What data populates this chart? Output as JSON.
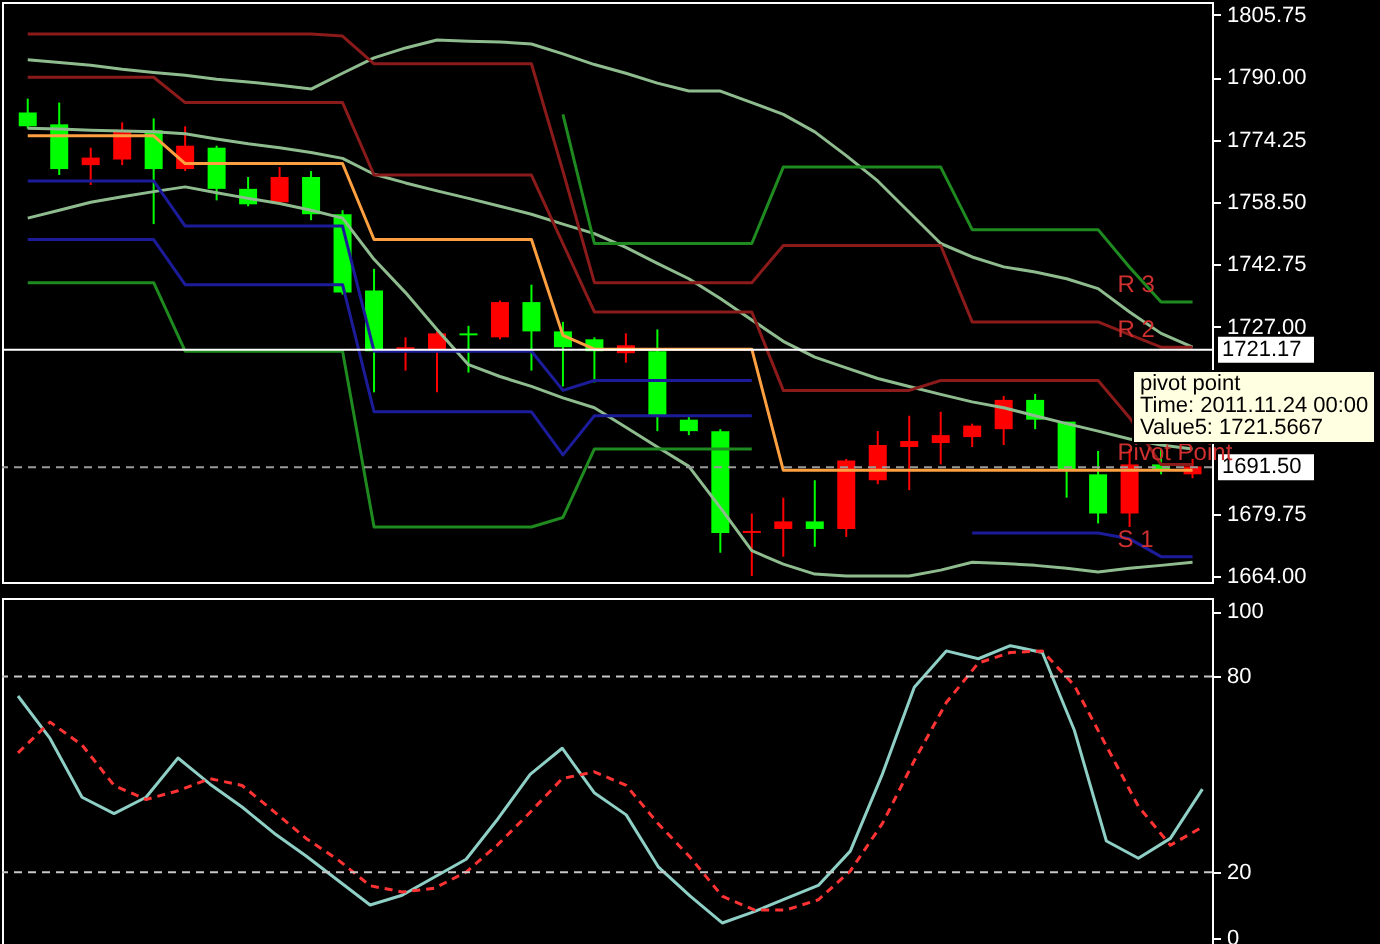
{
  "chart_data": [
    {
      "type": "candlestick",
      "categories": [
        null,
        null,
        null,
        null,
        null,
        null,
        null,
        null,
        null,
        null,
        null,
        null,
        null,
        null,
        null,
        null,
        null,
        null,
        null,
        null,
        null,
        null,
        null,
        null,
        null,
        null,
        null,
        null,
        null,
        null,
        null,
        null,
        null,
        null,
        null,
        null,
        null,
        null
      ],
      "ohlc": [
        [
          1777.6,
          1784.6,
          1777.0,
          1781.1
        ],
        [
          1766.8,
          1783.6,
          1765.3,
          1778.1
        ],
        [
          1769.7,
          1772.2,
          1762.8,
          1767.8
        ],
        [
          1776.2,
          1778.6,
          1767.8,
          1769.2
        ],
        [
          1766.8,
          1779.6,
          1752.9,
          1776.6
        ],
        [
          1772.7,
          1777.6,
          1766.3,
          1766.8
        ],
        [
          1761.8,
          1772.7,
          1758.9,
          1772.2
        ],
        [
          1757.9,
          1764.8,
          1757.4,
          1761.8
        ],
        [
          1764.8,
          1767.3,
          1757.9,
          1758.4
        ],
        [
          1755.4,
          1766.3,
          1753.9,
          1764.8
        ],
        [
          1735.6,
          1756.4,
          1735.1,
          1755.4
        ],
        [
          1720.8,
          1741.6,
          1710.4,
          1736.1
        ],
        [
          1721.8,
          1724.3,
          1715.9,
          1720.8
        ],
        [
          1725.3,
          1725.8,
          1710.4,
          1721.3
        ],
        [
          1724.8,
          1727.2,
          1715.4,
          1725.3
        ],
        [
          1733.2,
          1733.6,
          1723.8,
          1724.3
        ],
        [
          1725.8,
          1737.6,
          1715.9,
          1733.2
        ],
        [
          1721.8,
          1728.2,
          1711.9,
          1725.8
        ],
        [
          1720.8,
          1724.3,
          1712.9,
          1723.8
        ],
        [
          1722.3,
          1725.3,
          1717.9,
          1720.3
        ],
        [
          1704.5,
          1726.3,
          1700.6,
          1720.8
        ],
        [
          1700.6,
          1704.5,
          1699.6,
          1703.5
        ],
        [
          1674.9,
          1701.1,
          1669.9,
          1700.6
        ],
        [
          1675.4,
          1679.8,
          1664.0,
          1674.9
        ],
        [
          1677.8,
          1683.8,
          1668.9,
          1675.9
        ],
        [
          1675.9,
          1688.2,
          1671.4,
          1677.8
        ],
        [
          1693.2,
          1693.6,
          1673.9,
          1675.9
        ],
        [
          1697.1,
          1700.6,
          1687.2,
          1688.2
        ],
        [
          1698.1,
          1704.5,
          1685.7,
          1696.6
        ],
        [
          1699.6,
          1705.5,
          1692.2,
          1697.6
        ],
        [
          1702.0,
          1702.5,
          1696.6,
          1699.1
        ],
        [
          1708.5,
          1709.5,
          1697.1,
          1701.1
        ],
        [
          1703.5,
          1710.0,
          1701.1,
          1708.5
        ],
        [
          1690.7,
          1703.0,
          1683.8,
          1703.0
        ],
        [
          1679.8,
          1695.6,
          1677.3,
          1689.7
        ],
        [
          1692.2,
          1696.1,
          1676.4,
          1679.8
        ],
        [
          1690.7,
          1696.1,
          1689.7,
          1692.2
        ],
        [
          1691.7,
          1693.6,
          1688.7,
          1689.7
        ]
      ],
      "colors": [
        "#00ff00",
        "#00ff00",
        "#ff0000",
        "#ff0000",
        "#00ff00",
        "#ff0000",
        "#00ff00",
        "#00ff00",
        "#ff0000",
        "#00ff00",
        "#00ff00",
        "#00ff00",
        "#ff0000",
        "#ff0000",
        "#00ff00",
        "#ff0000",
        "#00ff00",
        "#00ff00",
        "#00ff00",
        "#ff0000",
        "#00ff00",
        "#00ff00",
        "#00ff00",
        "#ff0000",
        "#ff0000",
        "#00ff00",
        "#ff0000",
        "#ff0000",
        "#ff0000",
        "#ff0000",
        "#ff0000",
        "#ff0000",
        "#00ff00",
        "#00ff00",
        "#00ff00",
        "#ff0000",
        "#00ff00",
        "#ff0000"
      ],
      "series": [
        {
          "type": "line",
          "color": "#8fbc8f",
          "values": [
            1794.4,
            1793.7,
            1793.0,
            1792.0,
            1791.2,
            1790.5,
            1789.5,
            1788.8,
            1788.0,
            1787.0,
            1791.0,
            1794.9,
            1797.4,
            1799.4,
            1799.1,
            1798.9,
            1798.4,
            1795.9,
            1793.2,
            1791.0,
            1788.5,
            1786.5,
            1786.5,
            1783.6,
            1780.6,
            1776.2,
            1770.2,
            1763.8,
            1755.9,
            1748.0,
            1744.6,
            1742.1,
            1740.8,
            1739.1,
            1736.6,
            1730.7,
            1725.3,
            1721.8
          ]
        },
        {
          "type": "line",
          "color": "#8fbc8f",
          "values": [
            1777.1,
            1776.9,
            1776.6,
            1776.4,
            1776.2,
            1775.7,
            1774.4,
            1773.2,
            1772.2,
            1771.0,
            1769.5,
            1765.5,
            1763.3,
            1761.3,
            1759.4,
            1757.4,
            1755.4,
            1752.9,
            1750.5,
            1747.0,
            1743.0,
            1739.1,
            1734.1,
            1728.7,
            1723.3,
            1719.3,
            1716.6,
            1713.9,
            1711.9,
            1709.9,
            1708.0,
            1706.5,
            1704.5,
            1702.5,
            1700.6,
            1698.6,
            1697.1,
            1696.1
          ]
        },
        {
          "type": "line",
          "color": "#8fbc8f",
          "values": [
            1754.4,
            1756.4,
            1758.4,
            1759.8,
            1761.1,
            1762.3,
            1760.8,
            1759.4,
            1758.1,
            1756.4,
            1754.4,
            1744.0,
            1735.6,
            1726.3,
            1717.4,
            1714.4,
            1711.9,
            1709.0,
            1706.5,
            1701.6,
            1696.6,
            1691.7,
            1681.3,
            1670.4,
            1667.0,
            1664.5,
            1664.0,
            1664.0,
            1664.0,
            1665.5,
            1667.5,
            1667.2,
            1666.7,
            1666.0,
            1665.0,
            1666.0,
            1666.7,
            1667.5
          ]
        },
        {
          "type": "line",
          "name": "R 3",
          "color": "#1f8a1f",
          "values": [
            null,
            null,
            null,
            null,
            null,
            null,
            null,
            null,
            null,
            null,
            null,
            null,
            null,
            null,
            null,
            null,
            null,
            1780.6,
            1748.0,
            1748.0,
            1748.0,
            1748.0,
            1748.0,
            1748.0,
            1767.3,
            1767.3,
            1767.3,
            1767.3,
            1767.3,
            1767.3,
            1751.5,
            1751.5,
            1751.5,
            1751.5,
            1751.5,
            1742.0,
            1733.2,
            1733.2
          ]
        },
        {
          "type": "line",
          "name": "R 2",
          "color": "#8b1a1a",
          "values": [
            1800.9,
            1800.9,
            1800.9,
            1800.9,
            1800.9,
            1800.9,
            1800.9,
            1800.9,
            1800.9,
            1800.9,
            1800.4,
            1793.4,
            1793.4,
            1793.4,
            1793.4,
            1793.4,
            1793.4,
            1766.3,
            1738.1,
            1738.1,
            1738.1,
            1738.1,
            1738.1,
            1738.1,
            1747.5,
            1747.5,
            1747.5,
            1747.5,
            1747.5,
            1747.5,
            1728.2,
            1728.2,
            1728.2,
            1728.2,
            1728.2,
            1725.0,
            1721.8,
            1721.8
          ]
        },
        {
          "type": "line",
          "color": "#8b1a1a",
          "values": [
            1790.0,
            1790.0,
            1790.0,
            1790.0,
            1790.0,
            1783.6,
            1783.6,
            1783.6,
            1783.6,
            1783.6,
            1783.6,
            1765.3,
            1765.3,
            1765.3,
            1765.3,
            1765.3,
            1765.3,
            1748.0,
            1730.7,
            1730.7,
            1730.7,
            1730.7,
            1730.7,
            1730.7,
            1710.9,
            1710.9,
            1710.9,
            1710.9,
            1710.9,
            1713.4,
            1713.4,
            1713.4,
            1713.4,
            1713.4,
            1713.4,
            1704.0,
            1692.2,
            1692.2
          ]
        },
        {
          "type": "line",
          "name": "Pivot Point",
          "color": "#ffa040",
          "values": [
            1775.2,
            1775.2,
            1775.2,
            1775.2,
            1775.2,
            1768.2,
            1768.2,
            1768.2,
            1768.2,
            1768.2,
            1768.2,
            1749.0,
            1749.0,
            1749.0,
            1749.0,
            1749.0,
            1749.0,
            1724.8,
            1721.3,
            1721.3,
            1721.3,
            1721.3,
            1721.3,
            1721.3,
            1690.7,
            1690.7,
            1690.7,
            1690.7,
            1690.7,
            1690.7,
            1690.7,
            1690.7,
            1690.7,
            1690.7,
            1690.7,
            1690.7,
            1690.7,
            1690.7
          ]
        },
        {
          "type": "line",
          "name": "S 1",
          "color": "#1c1c9a",
          "values": [
            1763.8,
            1763.8,
            1763.8,
            1763.8,
            1763.8,
            1752.4,
            1752.4,
            1752.4,
            1752.4,
            1752.4,
            1752.4,
            1720.8,
            1720.8,
            1720.8,
            1720.8,
            1720.8,
            1720.8,
            1710.9,
            1713.4,
            1713.4,
            1713.4,
            1713.4,
            1713.4,
            1713.4,
            null,
            null,
            null,
            null,
            null,
            null,
            1674.9,
            1674.9,
            1674.9,
            1674.9,
            1674.9,
            1673.4,
            1668.9,
            1668.9
          ]
        },
        {
          "type": "line",
          "color": "#1c1c9a",
          "values": [
            1749.0,
            1749.0,
            1749.0,
            1749.0,
            1749.0,
            1737.6,
            1737.6,
            1737.6,
            1737.6,
            1737.6,
            1737.6,
            1705.5,
            1705.5,
            1705.5,
            1705.5,
            1705.5,
            1705.5,
            1694.6,
            1704.5,
            1704.5,
            1704.5,
            1704.5,
            1704.5,
            1704.5,
            null,
            null,
            null,
            null,
            null,
            null,
            null,
            null,
            null,
            null,
            null,
            null,
            null,
            null
          ]
        },
        {
          "type": "line",
          "color": "#1f8a1f",
          "values": [
            1738.1,
            1738.1,
            1738.1,
            1738.1,
            1738.1,
            1720.8,
            1720.8,
            1720.8,
            1720.8,
            1720.8,
            1720.8,
            1676.4,
            1676.4,
            1676.4,
            1676.4,
            1676.4,
            1676.4,
            1678.8,
            1696.1,
            1696.1,
            1696.1,
            1696.1,
            1696.1,
            1696.1,
            null,
            null,
            null,
            null,
            null,
            null,
            null,
            null,
            null,
            null,
            null,
            null,
            null,
            null
          ]
        }
      ],
      "ylim": [
        1662.5,
        1809
      ],
      "yticks": [
        {
          "value": 1664,
          "label": "1664.00"
        },
        {
          "value": 1679.75,
          "label": "1679.75"
        },
        {
          "value": 1727,
          "label": "1727.00"
        },
        {
          "value": 1742.75,
          "label": "1742.75"
        },
        {
          "value": 1758.5,
          "label": "1758.50"
        },
        {
          "value": 1774.25,
          "label": "1774.25"
        },
        {
          "value": 1790,
          "label": "1790.00"
        },
        {
          "value": 1805.75,
          "label": "1805.75"
        }
      ],
      "ref_lines": [
        {
          "axis": "y",
          "value": 1721.17,
          "label": "1721.17",
          "color": "#ffffff",
          "line_style": "solid"
        },
        {
          "axis": "y",
          "value": 1691.5,
          "label": "1691.50",
          "color": "#9a9a9a",
          "line_style": "dashed"
        }
      ],
      "annotations": [
        "pivot point",
        "Time: 2011.11.24 00:00",
        "Value5: 1721.5667"
      ],
      "tick_labels": "y"
    },
    {
      "type": "line",
      "categories": [
        null,
        null,
        null,
        null,
        null,
        null,
        null,
        null,
        null,
        null,
        null,
        null,
        null,
        null,
        null,
        null,
        null,
        null,
        null,
        null,
        null,
        null,
        null,
        null,
        null,
        null,
        null,
        null,
        null,
        null,
        null,
        null,
        null,
        null,
        null,
        null,
        null,
        null
      ],
      "series": [
        {
          "color": "#8ecfc6",
          "line_style": "solid",
          "values": [
            74,
            61,
            43,
            38,
            43,
            55,
            47,
            40,
            32,
            25,
            17.5,
            10,
            13,
            18.5,
            24,
            36.5,
            50,
            58,
            44.4,
            37.6,
            21.7,
            12.7,
            4.5,
            8,
            12,
            16,
            26.5,
            50,
            76.7,
            87.8,
            85.4,
            89.4,
            87.3,
            63.5,
            29.6,
            24.3,
            30.4,
            45.5
          ]
        },
        {
          "color": "#ff3333",
          "line_style": "dashed",
          "values": [
            56.6,
            66,
            59,
            46.6,
            42.3,
            45,
            48.7,
            46.6,
            38.6,
            30.4,
            23.8,
            15.9,
            14,
            15.1,
            20.1,
            28.6,
            38.4,
            48.7,
            50.8,
            46.6,
            34.9,
            24.6,
            12.7,
            8.5,
            8.5,
            11.6,
            20.4,
            34.9,
            54.2,
            72,
            84.1,
            87.3,
            87.8,
            77.2,
            58.7,
            40.2,
            28.3,
            33.9
          ]
        }
      ],
      "ylim": [
        -5,
        104
      ],
      "yticks": [
        0,
        20,
        80,
        100
      ],
      "ref_lines": [
        {
          "axis": "y",
          "value": 80,
          "color": "#c8c8c8",
          "line_style": "dashed"
        },
        {
          "axis": "y",
          "value": 20,
          "color": "#c8c8c8",
          "line_style": "dashed"
        }
      ],
      "tick_labels": "y"
    }
  ]
}
